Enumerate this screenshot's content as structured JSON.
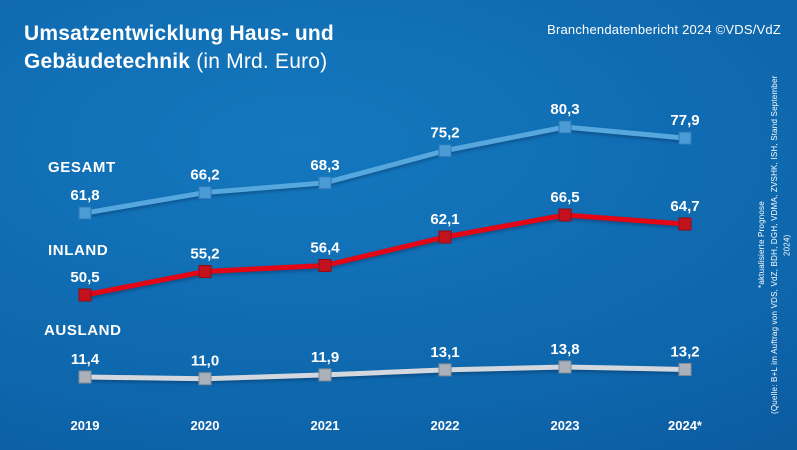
{
  "header": {
    "title_line1": "Umsatzentwicklung Haus- und",
    "title_line2_bold": "Gebäudetechnik",
    "title_line2_light": "(in Mrd. Euro)",
    "source_top_right": "Branchendatenbericht 2024 ©VDS/VdZ"
  },
  "footnote": {
    "line1": "*aktualisierte Prognose",
    "line2": "(Quelle: B+L im Auftrag von VDS, VdZ, BDH, DGH, VDMA, ZVSHK, ISH, Stand September 2024)"
  },
  "chart_data": {
    "type": "line",
    "title": "Umsatzentwicklung Haus- und Gebäudetechnik (in Mrd. Euro)",
    "categories": [
      "2019",
      "2020",
      "2021",
      "2022",
      "2023",
      "2024*"
    ],
    "series": [
      {
        "name": "GESAMT",
        "values": [
          61.8,
          66.2,
          68.3,
          75.2,
          80.3,
          77.9
        ],
        "labels": [
          "61,8",
          "66,2",
          "68,3",
          "75,2",
          "80,3",
          "77,9"
        ],
        "line_color": "#55a7dd",
        "marker_color": "#4a9bd6",
        "marker_edge": "#2f7ab5"
      },
      {
        "name": "INLAND",
        "values": [
          50.5,
          55.2,
          56.4,
          62.1,
          66.5,
          64.7
        ],
        "labels": [
          "50,5",
          "55,2",
          "56,4",
          "62,1",
          "66,5",
          "64,7"
        ],
        "line_color": "#e30615",
        "marker_color": "#c3111e",
        "marker_edge": "#8e0d15"
      },
      {
        "name": "AUSLAND",
        "values": [
          11.4,
          11.0,
          11.9,
          13.1,
          13.8,
          13.2
        ],
        "labels": [
          "11,4",
          "11,0",
          "11,9",
          "13,1",
          "13,8",
          "13,2"
        ],
        "line_color": "#d3d8de",
        "marker_color": "#aab1ba",
        "marker_edge": "#848b94"
      }
    ],
    "xlabel": "",
    "ylabel": "Mrd. Euro",
    "ylim": [
      0,
      90
    ],
    "grid": false,
    "legend_position": "left-inline"
  }
}
